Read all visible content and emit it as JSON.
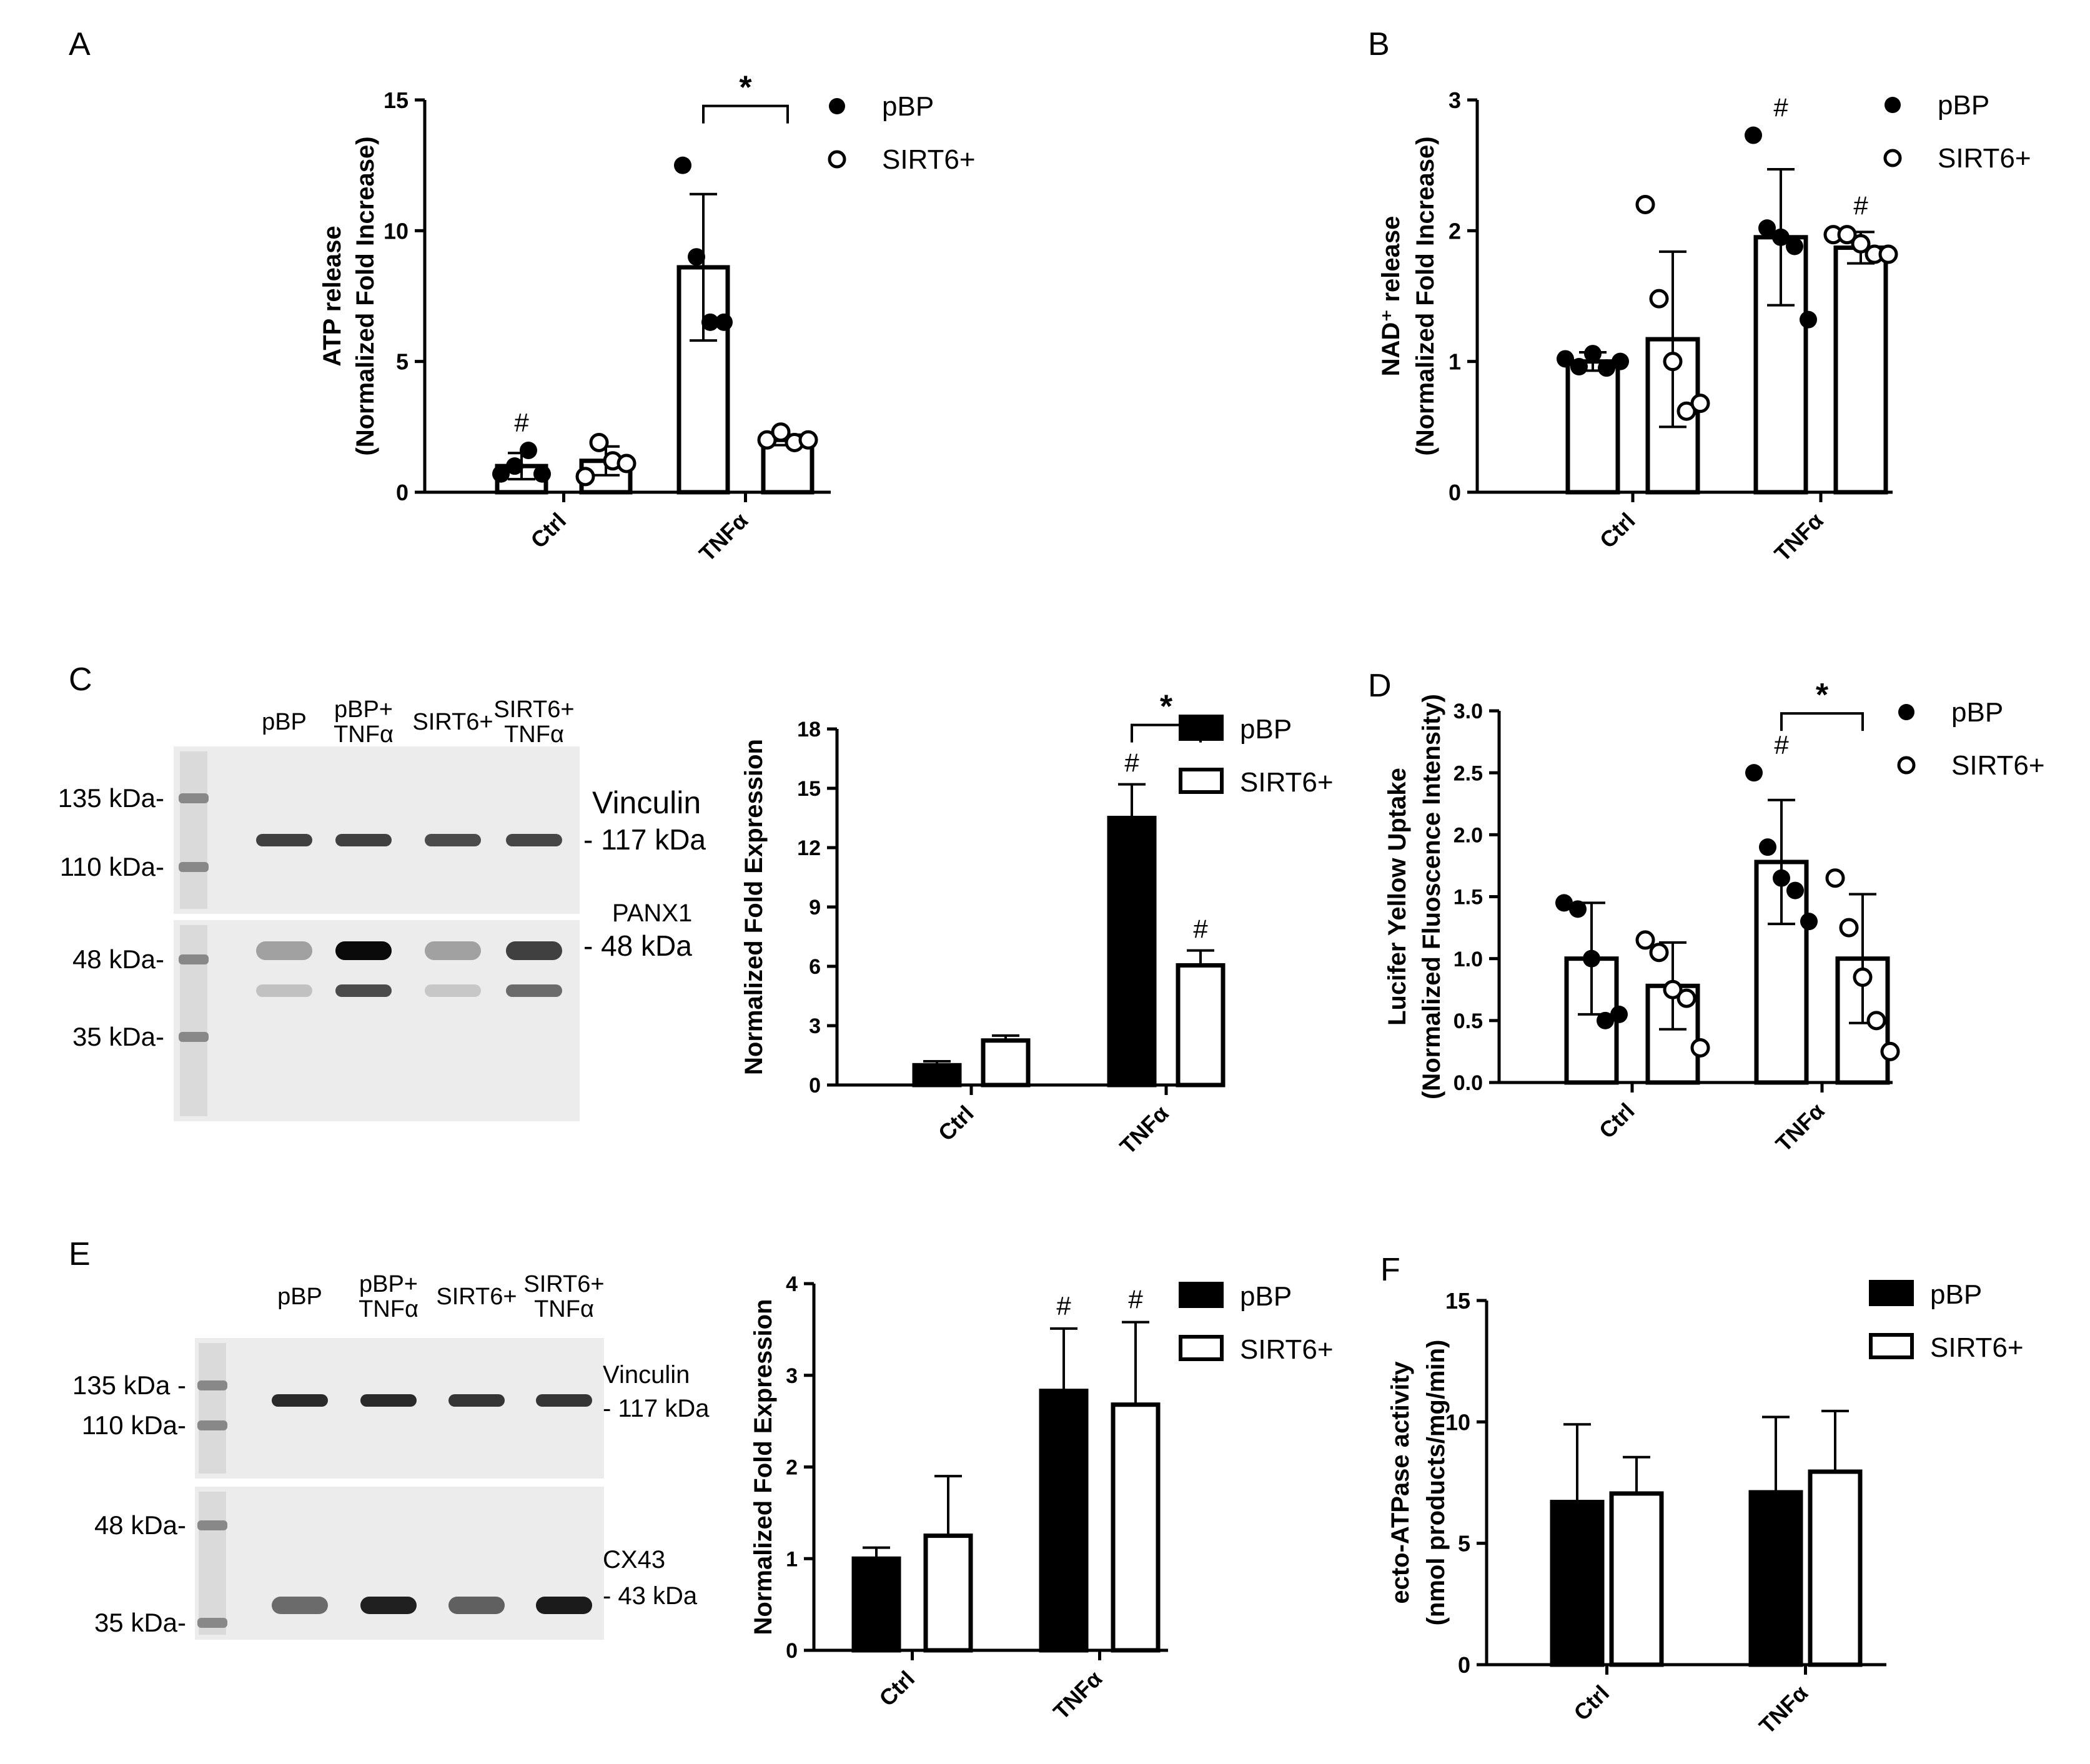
{
  "panels": {
    "A": {
      "letter": "A"
    },
    "B": {
      "letter": "B"
    },
    "C": {
      "letter": "C"
    },
    "D": {
      "letter": "D"
    },
    "E": {
      "letter": "E"
    },
    "F": {
      "letter": "F"
    }
  },
  "blots": [
    {
      "panel": "C",
      "lanes": [
        "pBP",
        "pBP+\nTNFα",
        "SIRT6+",
        "SIRT6+\nTNFα"
      ],
      "markers": [
        "135 kDa-",
        "110 kDa-",
        "48 kDa-",
        "35 kDa-"
      ],
      "targets": [
        {
          "name": "Vinculin",
          "size": "- 117 kDa"
        },
        {
          "name": "PANX1",
          "size": "- 48 kDa"
        }
      ],
      "band_intensity": {
        "vinculin": [
          0.75,
          0.75,
          0.7,
          0.72
        ],
        "panx1_upper": [
          0.3,
          1.0,
          0.3,
          0.75
        ],
        "panx1_lower": [
          0.15,
          0.7,
          0.12,
          0.55
        ]
      }
    },
    {
      "panel": "E",
      "lanes": [
        "pBP",
        "pBP+\nTNFα",
        "SIRT6+",
        "SIRT6+\nTNFα"
      ],
      "markers": [
        "135 kDa -",
        "110 kDa-",
        "48 kDa-",
        "35 kDa-"
      ],
      "targets": [
        {
          "name": "Vinculin",
          "size": "- 117 kDa"
        },
        {
          "name": "CX43",
          "size": "- 43 kDa"
        }
      ],
      "band_intensity": {
        "vinculin": [
          0.85,
          0.85,
          0.8,
          0.8
        ],
        "cx43": [
          0.55,
          0.9,
          0.6,
          0.92
        ]
      }
    }
  ],
  "chart_data": [
    {
      "panel": "A",
      "type": "bar",
      "style": "dots",
      "categories": [
        "Ctrl",
        "TNFα"
      ],
      "ylabel": [
        "ATP release",
        "(Normalized Fold Increase)"
      ],
      "ylim": [
        0,
        15
      ],
      "yticks": [
        0,
        5,
        10,
        15
      ],
      "series": [
        {
          "name": "pBP",
          "fill": "white",
          "marker": "filled",
          "values": [
            1.0,
            8.6
          ],
          "err": [
            0.5,
            2.8
          ],
          "points": [
            [
              0.7,
              1.0,
              1.6,
              0.7
            ],
            [
              12.5,
              9.0,
              6.5,
              6.5
            ]
          ]
        },
        {
          "name": "SIRT6+",
          "fill": "white",
          "marker": "open",
          "values": [
            1.2,
            2.0
          ],
          "err": [
            0.55,
            0.2
          ],
          "points": [
            [
              0.6,
              1.9,
              1.2,
              1.1
            ],
            [
              2.0,
              2.3,
              1.9,
              2.0
            ]
          ]
        }
      ],
      "hash": [
        [
          "#",
          ""
        ],
        [
          "",
          ""
        ]
      ],
      "significance": [
        {
          "group": 1,
          "label": "*"
        }
      ]
    },
    {
      "panel": "B",
      "type": "bar",
      "style": "dots",
      "categories": [
        "Ctrl",
        "TNFα"
      ],
      "ylabel": [
        "NAD⁺ release",
        "(Normalized Fold Increase)"
      ],
      "ylim": [
        0,
        3
      ],
      "yticks": [
        0,
        1,
        2,
        3
      ],
      "series": [
        {
          "name": "pBP",
          "fill": "white",
          "marker": "filled",
          "values": [
            1.0,
            1.95
          ],
          "err": [
            0.07,
            0.52
          ],
          "points": [
            [
              1.02,
              0.96,
              1.06,
              0.95,
              1.0
            ],
            [
              2.73,
              2.02,
              1.95,
              1.88,
              1.32
            ]
          ]
        },
        {
          "name": "SIRT6+",
          "fill": "white",
          "marker": "open",
          "values": [
            1.17,
            1.87
          ],
          "err": [
            0.67,
            0.12
          ],
          "points": [
            [
              2.2,
              1.48,
              1.0,
              0.62,
              0.68
            ],
            [
              1.97,
              1.97,
              1.9,
              1.82,
              1.82
            ]
          ]
        }
      ],
      "hash": [
        [
          "",
          ""
        ],
        [
          "#",
          "#"
        ]
      ],
      "significance": []
    },
    {
      "panel": "C",
      "type": "bar",
      "style": "solid",
      "categories": [
        "Ctrl",
        "TNFα"
      ],
      "ylabel": [
        "Normalized Fold Expression"
      ],
      "ylim": [
        0,
        18
      ],
      "yticks": [
        0,
        3,
        6,
        9,
        12,
        15,
        18
      ],
      "series": [
        {
          "name": "pBP",
          "fill": "black",
          "values": [
            1.0,
            13.5
          ],
          "err": [
            0.2,
            1.7
          ]
        },
        {
          "name": "SIRT6+",
          "fill": "white",
          "values": [
            2.25,
            6.05
          ],
          "err": [
            0.25,
            0.75
          ]
        }
      ],
      "hash": [
        [
          "",
          ""
        ],
        [
          "#",
          "#"
        ]
      ],
      "significance": [
        {
          "group": 1,
          "label": "*"
        }
      ]
    },
    {
      "panel": "D",
      "type": "bar",
      "style": "dots",
      "categories": [
        "Ctrl",
        "TNFα"
      ],
      "ylabel": [
        "Lucifer Yellow Uptake",
        "(Normalized Fluoscence Intensity)"
      ],
      "ylim": [
        0,
        3.0
      ],
      "yticks": [
        0.0,
        0.5,
        1.0,
        1.5,
        2.0,
        2.5,
        3.0
      ],
      "series": [
        {
          "name": "pBP",
          "fill": "white",
          "marker": "filled",
          "values": [
            1.0,
            1.78
          ],
          "err": [
            0.45,
            0.5
          ],
          "points": [
            [
              1.45,
              1.4,
              1.0,
              0.5,
              0.55
            ],
            [
              2.5,
              1.9,
              1.65,
              1.55,
              1.3
            ]
          ]
        },
        {
          "name": "SIRT6+",
          "fill": "white",
          "marker": "open",
          "values": [
            0.78,
            1.0
          ],
          "err": [
            0.35,
            0.52
          ],
          "points": [
            [
              1.15,
              1.05,
              0.75,
              0.68,
              0.28
            ],
            [
              1.65,
              1.25,
              0.85,
              0.5,
              0.25
            ]
          ]
        }
      ],
      "hash": [
        [
          "",
          ""
        ],
        [
          "#",
          ""
        ]
      ],
      "significance": [
        {
          "group": 1,
          "label": "*"
        }
      ]
    },
    {
      "panel": "E",
      "type": "bar",
      "style": "solid",
      "categories": [
        "Ctrl",
        "TNFα"
      ],
      "ylabel": [
        "Normalized Fold Expression"
      ],
      "ylim": [
        0,
        4
      ],
      "yticks": [
        0,
        1,
        2,
        3,
        4
      ],
      "series": [
        {
          "name": "pBP",
          "fill": "black",
          "values": [
            1.0,
            2.83
          ],
          "err": [
            0.12,
            0.68
          ]
        },
        {
          "name": "SIRT6+",
          "fill": "white",
          "values": [
            1.25,
            2.68
          ],
          "err": [
            0.65,
            0.9
          ]
        }
      ],
      "hash": [
        [
          "",
          ""
        ],
        [
          "#",
          "#"
        ]
      ],
      "significance": []
    },
    {
      "panel": "F",
      "type": "bar",
      "style": "solid",
      "categories": [
        "Ctrl",
        "TNFα"
      ],
      "ylabel": [
        "ecto-ATPase activity",
        "(nmol products/mg/min)"
      ],
      "ylim": [
        0,
        15
      ],
      "yticks": [
        0,
        5,
        10,
        15
      ],
      "series": [
        {
          "name": "pBP",
          "fill": "black",
          "values": [
            6.7,
            7.1
          ],
          "err": [
            3.2,
            3.1
          ]
        },
        {
          "name": "SIRT6+",
          "fill": "white",
          "values": [
            7.05,
            7.95
          ],
          "err": [
            1.5,
            2.5
          ]
        }
      ],
      "hash": [
        [
          "",
          ""
        ],
        [
          "",
          ""
        ]
      ],
      "significance": []
    }
  ]
}
